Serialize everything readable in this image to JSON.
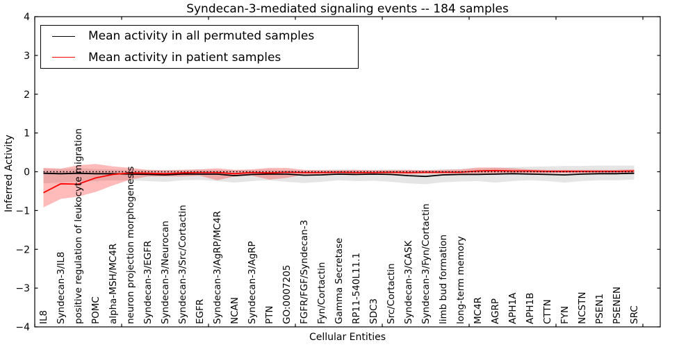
{
  "title": "Syndecan-3-mediated signaling events -- 184 samples",
  "legend": {
    "items": [
      {
        "label": "Mean activity in all permuted samples",
        "color": "#000000"
      },
      {
        "label": "Mean activity in patient samples",
        "color": "#ff0000"
      }
    ]
  },
  "chart_data": {
    "type": "line",
    "title": "Syndecan-3-mediated signaling events -- 184 samples",
    "xlabel": "Cellular Entities",
    "ylabel": "Inferred Activity",
    "ylim": [
      -4,
      4
    ],
    "yticks": [
      -4,
      -3,
      -2,
      -1,
      0,
      1,
      2,
      3,
      4
    ],
    "grid": false,
    "legend_position": "upper left",
    "categories": [
      "IL8",
      "Syndecan-3/IL8",
      "positive regulation of leukocyte migration",
      "POMC",
      "alpha-MSH/MC4R",
      "neuron projection morphogenesis",
      "Syndecan-3/EGFR",
      "Syndecan-3/Neurocan",
      "Syndecan-3/Src/Cortactin",
      "EGFR",
      "Syndecan-3/AgRP/MC4R",
      "NCAN",
      "Syndecan-3/AgRP",
      "PTN",
      "GO:0007205",
      "FGFR/FGF/Syndecan-3",
      "Fyn/Cortactin",
      "Gamma Secretase",
      "RP11-540L11.1",
      "SDC3",
      "Src/Cortactin",
      "Syndecan-3/CASK",
      "Syndecan-3/Fyn/Cortactin",
      "limb bud formation",
      "long-term memory",
      "MC4R",
      "AGRP",
      "APH1A",
      "APH1B",
      "CTTN",
      "FYN",
      "NCSTN",
      "PSEN1",
      "PSENEN",
      "SRC"
    ],
    "series": [
      {
        "name": "Mean activity in all permuted samples",
        "color": "#000000",
        "style": "solid",
        "values": [
          -0.04,
          -0.05,
          -0.04,
          -0.05,
          -0.05,
          -0.06,
          -0.07,
          -0.08,
          -0.06,
          -0.06,
          -0.06,
          -0.1,
          -0.07,
          -0.06,
          -0.06,
          -0.09,
          -0.08,
          -0.06,
          -0.07,
          -0.06,
          -0.07,
          -0.1,
          -0.12,
          -0.08,
          -0.07,
          -0.07,
          -0.06,
          -0.05,
          -0.06,
          -0.07,
          -0.08,
          -0.06,
          -0.05,
          -0.05,
          -0.04
        ]
      },
      {
        "name": "Mean activity in patient samples",
        "color": "#ff0000",
        "style": "solid",
        "values": [
          -0.54,
          -0.31,
          -0.32,
          -0.16,
          -0.07,
          -0.03,
          -0.04,
          -0.05,
          -0.03,
          -0.02,
          -0.02,
          -0.05,
          -0.02,
          -0.03,
          -0.01,
          -0.02,
          -0.02,
          -0.01,
          -0.02,
          -0.02,
          -0.01,
          -0.02,
          -0.01,
          -0.01,
          -0.01,
          0.02,
          0.03,
          0.02,
          0.02,
          0.01,
          0.01,
          0.01,
          0.01,
          0.01,
          0.02
        ]
      }
    ],
    "reference_line": {
      "name": "zero-reference",
      "value": 0,
      "color": "#000000",
      "style": "dotted"
    },
    "bands": [
      {
        "name": "permuted-samples-std-band",
        "fill": "rgba(0,0,0,0.10)",
        "upper": [
          0.08,
          0.07,
          0.09,
          0.07,
          0.06,
          0.05,
          0.05,
          0.04,
          0.05,
          0.06,
          0.05,
          0.04,
          0.05,
          0.06,
          0.05,
          0.04,
          0.05,
          0.06,
          0.05,
          0.05,
          0.06,
          0.05,
          0.04,
          0.06,
          0.07,
          0.08,
          0.1,
          0.12,
          0.13,
          0.14,
          0.15,
          0.15,
          0.16,
          0.16,
          0.16
        ],
        "lower": [
          -0.3,
          -0.28,
          -0.26,
          -0.24,
          -0.22,
          -0.22,
          -0.24,
          -0.26,
          -0.22,
          -0.21,
          -0.24,
          -0.28,
          -0.24,
          -0.22,
          -0.26,
          -0.29,
          -0.26,
          -0.22,
          -0.24,
          -0.23,
          -0.26,
          -0.3,
          -0.32,
          -0.27,
          -0.25,
          -0.24,
          -0.28,
          -0.24,
          -0.22,
          -0.24,
          -0.28,
          -0.24,
          -0.22,
          -0.22,
          -0.2
        ]
      },
      {
        "name": "patient-samples-std-band",
        "fill": "rgba(255,0,0,0.27)",
        "upper": [
          0.1,
          0.08,
          0.17,
          0.2,
          0.14,
          0.1,
          0.05,
          0.04,
          0.05,
          0.06,
          0.09,
          0.05,
          0.06,
          0.1,
          0.1,
          0.05,
          0.04,
          0.04,
          0.05,
          0.04,
          0.04,
          0.05,
          0.04,
          0.05,
          0.06,
          0.11,
          0.11,
          0.09,
          0.06,
          0.05,
          0.05,
          0.05,
          0.05,
          0.05,
          0.06
        ],
        "lower": [
          -0.92,
          -0.7,
          -0.64,
          -0.52,
          -0.35,
          -0.2,
          -0.12,
          -0.12,
          -0.12,
          -0.1,
          -0.22,
          -0.12,
          -0.1,
          -0.2,
          -0.16,
          -0.07,
          -0.06,
          -0.06,
          -0.07,
          -0.06,
          -0.06,
          -0.07,
          -0.06,
          -0.06,
          -0.07,
          -0.06,
          -0.08,
          -0.06,
          -0.05,
          -0.04,
          -0.04,
          -0.04,
          -0.04,
          -0.05,
          -0.05
        ]
      }
    ]
  }
}
